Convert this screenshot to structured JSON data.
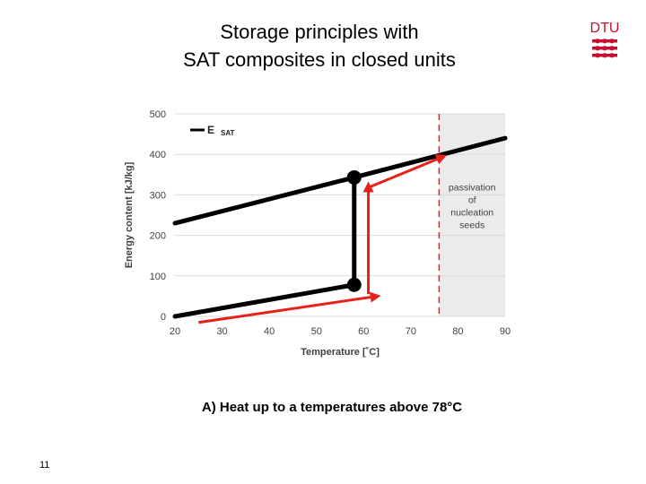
{
  "slide": {
    "title_lines": [
      "Storage principles with",
      "SAT composites in closed units"
    ],
    "caption": "A) Heat up to a temperatures above 78°C",
    "page_number": "11",
    "logo_text": "DTU",
    "logo_color": "#c8102e"
  },
  "chart_data": {
    "type": "line",
    "xlabel": "Temperature [˚C]",
    "ylabel": "Energy content [kJ/kg]",
    "xlim": [
      20,
      90
    ],
    "ylim": [
      0,
      500
    ],
    "x_ticks": [
      20,
      30,
      40,
      50,
      60,
      70,
      80,
      90
    ],
    "y_ticks": [
      0,
      100,
      200,
      300,
      400,
      500
    ],
    "grid": "horizontal",
    "legend": {
      "position": "top-left",
      "label": "E",
      "subscript": "SAT"
    },
    "series": [
      {
        "name": "E SAT",
        "color": "#000000",
        "segments": [
          [
            [
              20,
              0
            ],
            [
              58,
              78
            ]
          ],
          [
            [
              58,
              78
            ],
            [
              58,
              343
            ]
          ],
          [
            [
              20,
              230
            ],
            [
              58,
              343
            ]
          ],
          [
            [
              58,
              343
            ],
            [
              90,
              440
            ]
          ]
        ]
      },
      {
        "name": "path",
        "color": "#e8201a",
        "segments": [
          [
            [
              25,
              -15
            ],
            [
              63,
              50
            ]
          ],
          [
            [
              61,
              55
            ],
            [
              61,
              325
            ]
          ],
          [
            [
              61,
              318
            ],
            [
              77,
              395
            ]
          ]
        ]
      }
    ],
    "markers": [
      [
        58,
        343
      ],
      [
        58,
        78
      ]
    ],
    "threshold_line": {
      "x": 76,
      "color": "#e8201a",
      "style": "dashed"
    },
    "shaded_region": {
      "x_from": 76,
      "x_to": 90,
      "color": "#ebebeb"
    },
    "annotation": {
      "lines": [
        "passivation",
        "of",
        "nucleation",
        "seeds"
      ],
      "x": 83,
      "y": 275
    }
  }
}
